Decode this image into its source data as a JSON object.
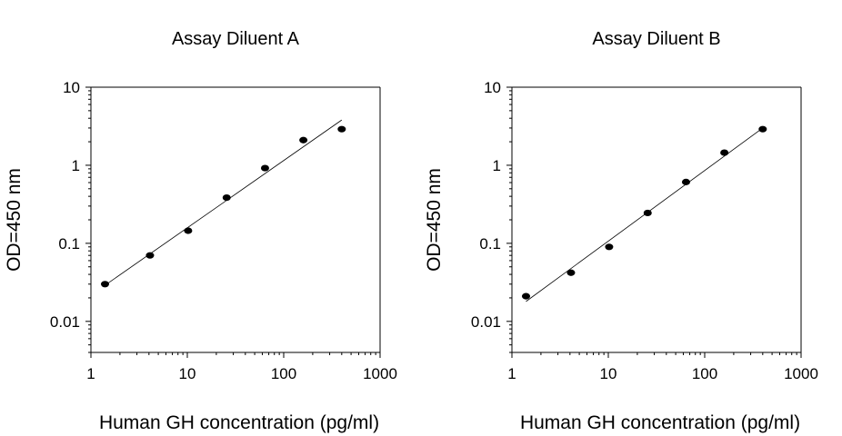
{
  "chart_data": [
    {
      "type": "scatter",
      "title": "Assay Diluent A",
      "xlabel": "Human GH concentration (pg/ml)",
      "ylabel": "OD=450 nm",
      "xscale": "log",
      "yscale": "log",
      "xlim": [
        1,
        1000
      ],
      "ylim": [
        0.004,
        10
      ],
      "x_ticks": [
        "1",
        "10",
        "100",
        "1000"
      ],
      "y_ticks": [
        "0.01",
        "0.1",
        "1",
        "10"
      ],
      "grid": false,
      "legend": "none",
      "points": [
        {
          "x": 1.4,
          "y": 0.03
        },
        {
          "x": 4.1,
          "y": 0.07
        },
        {
          "x": 10.2,
          "y": 0.145
        },
        {
          "x": 25.6,
          "y": 0.385
        },
        {
          "x": 64,
          "y": 0.92
        },
        {
          "x": 160,
          "y": 2.1
        },
        {
          "x": 400,
          "y": 2.9
        }
      ],
      "fit_line": [
        {
          "x": 1.4,
          "y": 0.029
        },
        {
          "x": 400,
          "y": 3.8
        }
      ]
    },
    {
      "type": "scatter",
      "title": "Assay Diluent B",
      "xlabel": "Human GH concentration (pg/ml)",
      "ylabel": "OD=450 nm",
      "xscale": "log",
      "yscale": "log",
      "xlim": [
        1,
        1000
      ],
      "ylim": [
        0.004,
        10
      ],
      "x_ticks": [
        "1",
        "10",
        "100",
        "1000"
      ],
      "y_ticks": [
        "0.01",
        "0.1",
        "1",
        "10"
      ],
      "grid": false,
      "legend": "none",
      "points": [
        {
          "x": 1.4,
          "y": 0.021
        },
        {
          "x": 4.1,
          "y": 0.042
        },
        {
          "x": 10.2,
          "y": 0.09
        },
        {
          "x": 25.6,
          "y": 0.245
        },
        {
          "x": 64,
          "y": 0.61
        },
        {
          "x": 160,
          "y": 1.45
        },
        {
          "x": 400,
          "y": 2.9
        }
      ],
      "fit_line": [
        {
          "x": 1.4,
          "y": 0.018
        },
        {
          "x": 400,
          "y": 3.0
        }
      ]
    }
  ]
}
